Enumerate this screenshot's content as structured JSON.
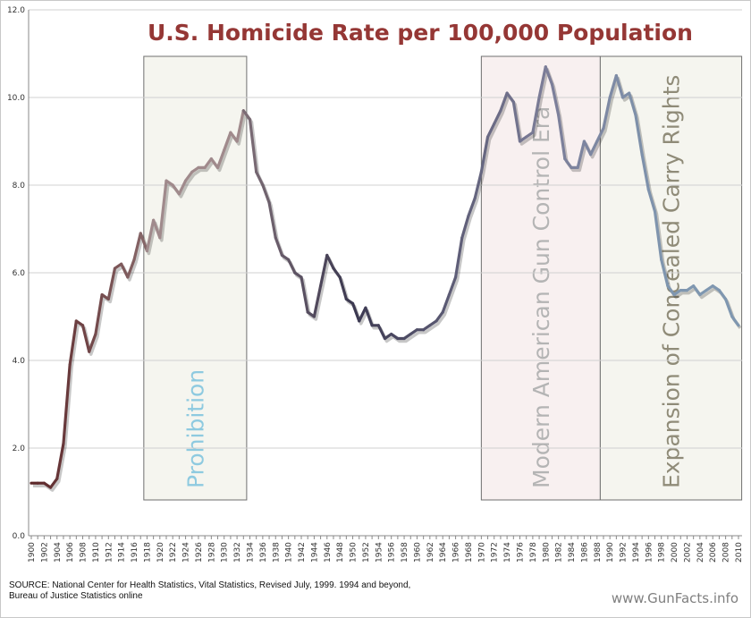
{
  "chart_data": {
    "type": "line",
    "title": "U.S. Homicide Rate per 100,000 Population",
    "xlabel": "",
    "ylabel": "",
    "ylim": [
      0,
      12
    ],
    "yticks": [
      "0.0",
      "2.0",
      "4.0",
      "6.0",
      "8.0",
      "10.0",
      "12.0"
    ],
    "xlim": [
      1900,
      2010
    ],
    "grid": true,
    "x": [
      1900,
      1901,
      1902,
      1903,
      1904,
      1905,
      1906,
      1907,
      1908,
      1909,
      1910,
      1911,
      1912,
      1913,
      1914,
      1915,
      1916,
      1917,
      1918,
      1919,
      1920,
      1921,
      1922,
      1923,
      1924,
      1925,
      1926,
      1927,
      1928,
      1929,
      1930,
      1931,
      1932,
      1933,
      1934,
      1935,
      1936,
      1937,
      1938,
      1939,
      1940,
      1941,
      1942,
      1943,
      1944,
      1945,
      1946,
      1947,
      1948,
      1949,
      1950,
      1951,
      1952,
      1953,
      1954,
      1955,
      1956,
      1957,
      1958,
      1959,
      1960,
      1961,
      1962,
      1963,
      1964,
      1965,
      1966,
      1967,
      1968,
      1969,
      1970,
      1971,
      1972,
      1973,
      1974,
      1975,
      1976,
      1977,
      1978,
      1979,
      1980,
      1981,
      1982,
      1983,
      1984,
      1985,
      1986,
      1987,
      1988,
      1989,
      1990,
      1991,
      1992,
      1993,
      1994,
      1995,
      1996,
      1997,
      1998,
      1999,
      2000,
      2001,
      2002,
      2003,
      2004,
      2005,
      2006,
      2007,
      2008,
      2009,
      2010
    ],
    "series": [
      {
        "name": "Homicide rate",
        "values": [
          1.2,
          1.2,
          1.2,
          1.1,
          1.3,
          2.1,
          3.9,
          4.9,
          4.8,
          4.2,
          4.6,
          5.5,
          5.4,
          6.1,
          6.2,
          5.9,
          6.3,
          6.9,
          6.5,
          7.2,
          6.8,
          8.1,
          8.0,
          7.8,
          8.1,
          8.3,
          8.4,
          8.4,
          8.6,
          8.4,
          8.8,
          9.2,
          9.0,
          9.7,
          9.5,
          8.3,
          8.0,
          7.6,
          6.8,
          6.4,
          6.3,
          6.0,
          5.9,
          5.1,
          5.0,
          5.7,
          6.4,
          6.1,
          5.9,
          5.4,
          5.3,
          4.9,
          5.2,
          4.8,
          4.8,
          4.5,
          4.6,
          4.5,
          4.5,
          4.6,
          4.7,
          4.7,
          4.8,
          4.9,
          5.1,
          5.5,
          5.9,
          6.8,
          7.3,
          7.7,
          8.3,
          9.1,
          9.4,
          9.7,
          10.1,
          9.9,
          9.0,
          9.1,
          9.2,
          10.0,
          10.7,
          10.3,
          9.6,
          8.6,
          8.4,
          8.4,
          9.0,
          8.7,
          9.0,
          9.3,
          10.0,
          10.5,
          10.0,
          10.1,
          9.6,
          8.7,
          7.9,
          7.4,
          6.3,
          5.7,
          5.5,
          5.6,
          5.6,
          5.7,
          5.5,
          5.6,
          5.7,
          5.6,
          5.4,
          5.0,
          4.8
        ]
      }
    ],
    "annotations": [
      {
        "label": "Prohibition",
        "from": 1917.5,
        "to": 1933.5,
        "fill": "#f5f5ef",
        "text_color": "#8ecae0"
      },
      {
        "label": "Modern American Gun Control Era",
        "from": 1970,
        "to": 1988.5,
        "fill": "#f8f0f0",
        "text_color": "#b4b4b4"
      },
      {
        "label": "Expansion of Concealed Carry Rights",
        "from": 1988.5,
        "to": 2010.5,
        "fill": "#f5f5ef",
        "text_color": "#8f8b78"
      }
    ],
    "colors": {
      "title": "#953735",
      "line_stops": [
        "#5b2527",
        "#9a8486",
        "#3b3850",
        "#7c7d98",
        "#7f97b0"
      ]
    }
  },
  "footer": {
    "source_line1": "SOURCE: National Center for Health Statistics, Vital Statistics, Revised July, 1999. 1994 and beyond,",
    "source_line2": "Bureau of Justice Statistics online",
    "watermark": "www.GunFacts.info"
  }
}
